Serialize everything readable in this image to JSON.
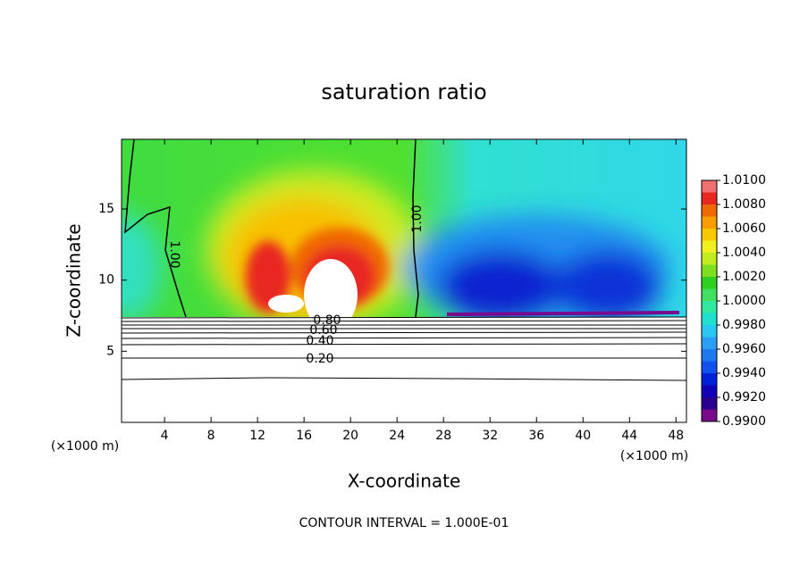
{
  "chart_data": {
    "type": "contour",
    "title": "saturation ratio",
    "x_label": "X-coordinate",
    "y_label": "Z-coordinate",
    "x_unit_label_left": "(×1000 m)",
    "x_unit_label_right": "(×1000 m)",
    "footer": "CONTOUR INTERVAL = 1.000E-01",
    "xlim": [
      0.3,
      48.9
    ],
    "ylim": [
      0,
      19.9
    ],
    "xticks": [
      4,
      8,
      12,
      16,
      20,
      24,
      28,
      32,
      36,
      40,
      44,
      48
    ],
    "yticks": [
      5,
      10,
      15
    ],
    "contour_labels": [
      "1.00",
      "1.00",
      "0.20",
      "0.40",
      "0.60",
      "0.80"
    ],
    "colorbar": {
      "lim": [
        0.99,
        1.01
      ],
      "ticks": [
        {
          "value": 0.99,
          "label": "0.9900"
        },
        {
          "value": 0.992,
          "label": "0.9920"
        },
        {
          "value": 0.994,
          "label": "0.9940"
        },
        {
          "value": 0.996,
          "label": "0.9960"
        },
        {
          "value": 0.998,
          "label": "0.9980"
        },
        {
          "value": 1.0,
          "label": "1.0000"
        },
        {
          "value": 1.002,
          "label": "1.0020"
        },
        {
          "value": 1.004,
          "label": "1.0040"
        },
        {
          "value": 1.006,
          "label": "1.0060"
        },
        {
          "value": 1.008,
          "label": "1.0080"
        },
        {
          "value": 1.01,
          "label": "1.0100"
        }
      ],
      "colors": [
        "#7a0a8c",
        "#2a0090",
        "#1000b8",
        "#0020d8",
        "#1050ec",
        "#1e78f0",
        "#2aa0f4",
        "#28c8f0",
        "#20e0d0",
        "#30e8a0",
        "#40e060",
        "#30d020",
        "#80e020",
        "#c0ec20",
        "#f0f020",
        "#f8c800",
        "#f89c00",
        "#f06800",
        "#e82820",
        "#f07070"
      ]
    }
  }
}
